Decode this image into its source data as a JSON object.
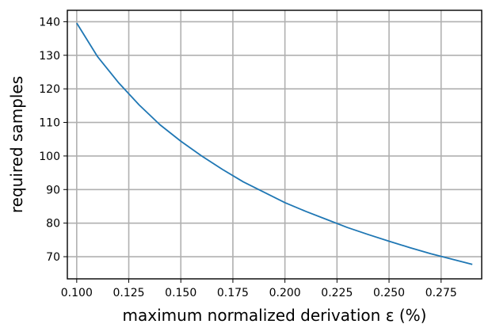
{
  "chart_data": {
    "type": "line",
    "title": "",
    "xlabel": "maximum normalized derivation ε (%)",
    "ylabel": "required samples",
    "xlim": [
      0.0955,
      0.2945
    ],
    "ylim": [
      63.4,
      143.4
    ],
    "x_ticks": [
      0.1,
      0.125,
      0.15,
      0.175,
      0.2,
      0.225,
      0.25,
      0.275
    ],
    "x_tick_labels": [
      "0.100",
      "0.125",
      "0.150",
      "0.175",
      "0.200",
      "0.225",
      "0.250",
      "0.275"
    ],
    "y_ticks": [
      70,
      80,
      90,
      100,
      110,
      120,
      130,
      140
    ],
    "y_tick_labels": [
      "70",
      "80",
      "90",
      "100",
      "110",
      "120",
      "130",
      "140"
    ],
    "grid": true,
    "series": [
      {
        "color": "#1f77b4",
        "x": [
          0.1,
          0.11,
          0.12,
          0.13,
          0.14,
          0.15,
          0.16,
          0.17,
          0.18,
          0.19,
          0.2,
          0.21,
          0.22,
          0.23,
          0.24,
          0.25,
          0.26,
          0.27,
          0.28,
          0.29
        ],
        "y": [
          139.6,
          129.6,
          121.9,
          115.2,
          109.3,
          104.4,
          100.0,
          96.0,
          92.3,
          89.2,
          86.1,
          83.5,
          81.1,
          78.7,
          76.6,
          74.6,
          72.7,
          70.9,
          69.3,
          67.7
        ]
      }
    ]
  }
}
